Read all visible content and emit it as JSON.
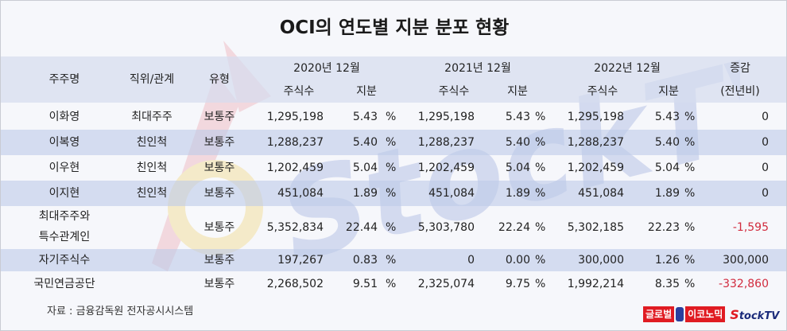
{
  "title": "OCI의 연도별 지분 분포 현황",
  "header": {
    "shareholder": "주주명",
    "position": "직위/관계",
    "type": "유형",
    "y2020": "2020년 12월",
    "y2021": "2021년 12월",
    "y2022": "2022년 12월",
    "change": "증감",
    "change_sub": "(전년비)",
    "shares": "주식수",
    "stake": "지분"
  },
  "pct_unit": "%",
  "rows": [
    {
      "name": "이화영",
      "position": "최대주주",
      "type": "보통주",
      "s2020": "1,295,198",
      "p2020": "5.43",
      "s2021": "1,295,198",
      "p2021": "5.43",
      "s2022": "1,295,198",
      "p2022": "5.43",
      "change": "0"
    },
    {
      "name": "이복영",
      "position": "친인척",
      "type": "보통주",
      "s2020": "1,288,237",
      "p2020": "5.40",
      "s2021": "1,288,237",
      "p2021": "5.40",
      "s2022": "1,288,237",
      "p2022": "5.40",
      "change": "0"
    },
    {
      "name": "이우현",
      "position": "친인척",
      "type": "보통주",
      "s2020": "1,202,459",
      "p2020": "5.04",
      "s2021": "1,202,459",
      "p2021": "5.04",
      "s2022": "1,202,459",
      "p2022": "5.04",
      "change": "0"
    },
    {
      "name": "이지현",
      "position": "친인척",
      "type": "보통주",
      "s2020": "451,084",
      "p2020": "1.89",
      "s2021": "451,084",
      "p2021": "1.89",
      "s2022": "451,084",
      "p2022": "1.89",
      "change": "0"
    },
    {
      "name": "최대주주와",
      "name2": "특수관계인",
      "position": "",
      "type": "보통주",
      "s2020": "5,352,834",
      "p2020": "22.44",
      "s2021": "5,303,780",
      "p2021": "22.24",
      "s2022": "5,302,185",
      "p2022": "22.23",
      "change": "-1,595"
    },
    {
      "name": "자기주식수",
      "position": "",
      "type": "보통주",
      "s2020": "197,267",
      "p2020": "0.83",
      "s2021": "0",
      "p2021": "0.00",
      "s2022": "300,000",
      "p2022": "1.26",
      "change": "300,000"
    },
    {
      "name": "국민연금공단",
      "position": "",
      "type": "보통주",
      "s2020": "2,268,502",
      "p2020": "9.51",
      "s2021": "2,325,074",
      "p2021": "9.75",
      "s2022": "1,992,214",
      "p2022": "8.35",
      "change": "-332,860"
    }
  ],
  "source": "자료 : 금융감독원 전자공시시스템",
  "logo": {
    "part1": "글로벌",
    "part2": "이코노믹",
    "brand_s": "S",
    "brand_rest": "tockTV"
  },
  "watermark_text": "StockTV",
  "colors": {
    "negative": "#d12b3e",
    "band": "#becbe8",
    "logo_red": "#e01b22",
    "logo_blue": "#1a2a7a"
  }
}
